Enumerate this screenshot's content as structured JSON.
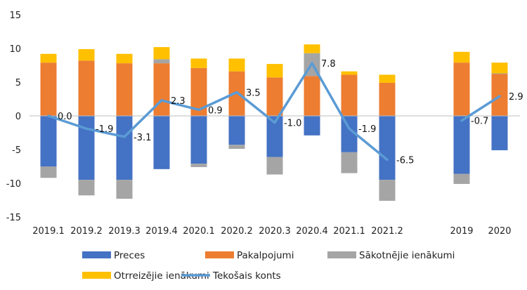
{
  "chart_data": {
    "type": "bar",
    "stacked": true,
    "categories": [
      "2019.1",
      "2019.2",
      "2019.3",
      "2019.4",
      "2020.1",
      "2020.2",
      "2020.3",
      "2020.4",
      "2021.1",
      "2021.2",
      "2019",
      "2020"
    ],
    "series": [
      {
        "name": "Preces",
        "color": "#4472C4",
        "values": [
          -7.5,
          -9.5,
          -9.5,
          -7.9,
          -7.1,
          -4.3,
          -6.1,
          -2.9,
          -5.4,
          -9.5,
          -8.6,
          -5.1
        ]
      },
      {
        "name": "Pakalpojumi",
        "color": "#ED7D31",
        "values": [
          7.9,
          8.2,
          7.8,
          7.8,
          7.1,
          6.6,
          5.7,
          5.9,
          6.1,
          4.9,
          7.9,
          6.2
        ]
      },
      {
        "name": "Sākotnējie ienākumi",
        "color": "#A5A5A5",
        "values": [
          -1.7,
          -2.3,
          -2.8,
          0.6,
          -0.5,
          -0.6,
          -2.6,
          3.4,
          -3.1,
          -3.1,
          -1.5,
          0.1
        ]
      },
      {
        "name": "Otrreizējie ienākumi",
        "color": "#FFC000",
        "values": [
          1.3,
          1.7,
          1.4,
          1.8,
          1.4,
          1.9,
          2.0,
          1.3,
          0.5,
          1.2,
          1.6,
          1.6
        ]
      }
    ],
    "line": {
      "name": "Tekošais konts",
      "color": "#5B9BD5",
      "values": [
        0.0,
        -1.9,
        -3.1,
        2.3,
        0.9,
        3.5,
        -1.0,
        7.8,
        -1.9,
        -6.5,
        -0.7,
        2.9
      ],
      "labels": [
        "0.0",
        "-1.9",
        "-3.1",
        "2.3",
        "0.9",
        "3.5",
        "-1.0",
        "7.8",
        "-1.9",
        "-6.5",
        "-0.7",
        "2.9"
      ],
      "segments": [
        [
          0,
          9
        ],
        [
          10,
          11
        ]
      ]
    },
    "ylim": [
      -15,
      15
    ],
    "yticks": [
      "15",
      "10",
      "5",
      "0",
      "-5",
      "-10",
      "-15"
    ],
    "ytick_values": [
      15,
      10,
      5,
      0,
      -5,
      -10,
      -15
    ],
    "grid": false,
    "legend": "bottom"
  }
}
